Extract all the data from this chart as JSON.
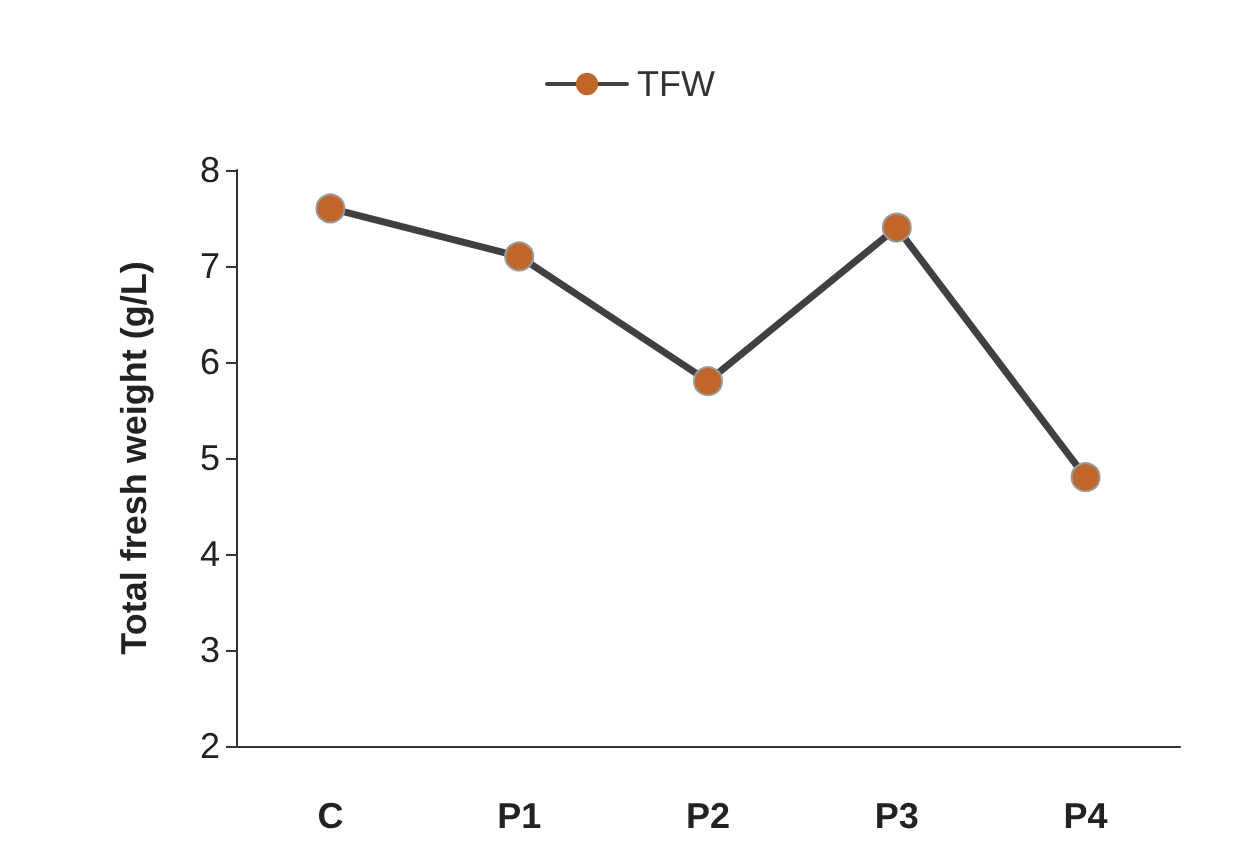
{
  "chart_data": {
    "type": "line",
    "ylabel": "Total fresh weight (g/L)",
    "categories": [
      "C",
      "P1",
      "P2",
      "P3",
      "P4"
    ],
    "series": [
      {
        "name": "TFW",
        "color": "#404040",
        "colors": [
          "#c0662a",
          "#c0662a",
          "#c0662a",
          "#c0662a",
          "#c0662a"
        ],
        "values": [
          7.6,
          7.1,
          5.8,
          7.4,
          4.8
        ]
      }
    ],
    "ylim": [
      2,
      8
    ],
    "yticks": [
      2,
      3,
      4,
      5,
      6,
      7,
      8
    ],
    "grid": false,
    "legend": "top",
    "marker": "circle",
    "line_style": "solid"
  }
}
